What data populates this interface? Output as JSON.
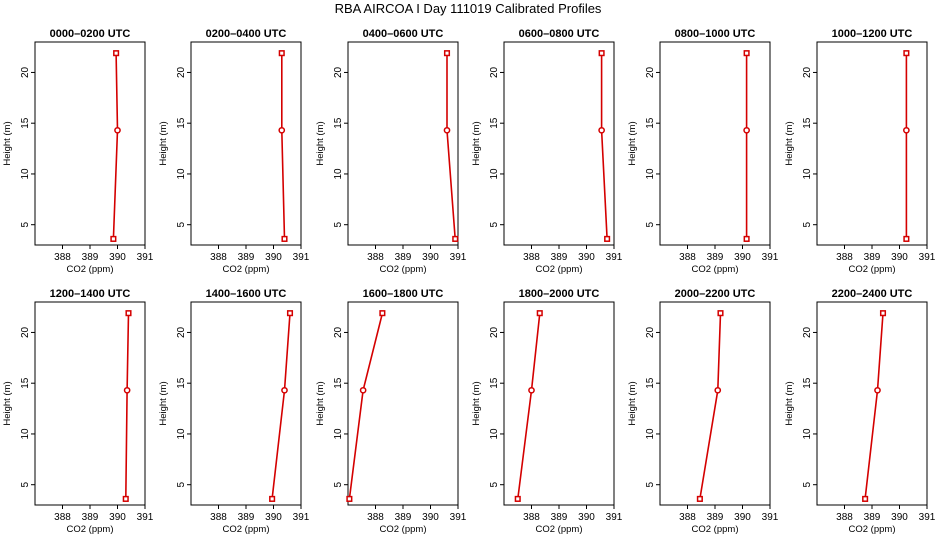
{
  "figure": {
    "title": "RBA AIRCOA I  Day 111019  Calibrated Profiles"
  },
  "chart_data": {
    "type": "line",
    "xlabel": "CO2 (ppm)",
    "ylabel": "Height (m)",
    "xlim": [
      387,
      391
    ],
    "ylim": [
      3,
      23
    ],
    "xticks": [
      388,
      389,
      390,
      391
    ],
    "yticks": [
      5,
      10,
      15,
      20
    ],
    "line_color": "#d40000",
    "grid": false,
    "panels": [
      {
        "title": "0000–0200 UTC",
        "x": [
          389.85,
          390.0,
          389.95
        ],
        "y": [
          3.6,
          14.3,
          21.9
        ]
      },
      {
        "title": "0200–0400 UTC",
        "x": [
          390.4,
          390.3,
          390.3
        ],
        "y": [
          3.6,
          14.3,
          21.9
        ]
      },
      {
        "title": "0400–0600 UTC",
        "x": [
          390.9,
          390.6,
          390.6
        ],
        "y": [
          3.6,
          14.3,
          21.9
        ]
      },
      {
        "title": "0600–0800 UTC",
        "x": [
          390.75,
          390.55,
          390.55
        ],
        "y": [
          3.6,
          14.3,
          21.9
        ]
      },
      {
        "title": "0800–1000 UTC",
        "x": [
          390.15,
          390.15,
          390.15
        ],
        "y": [
          3.6,
          14.3,
          21.9
        ]
      },
      {
        "title": "1000–1200 UTC",
        "x": [
          390.25,
          390.25,
          390.25
        ],
        "y": [
          3.6,
          14.3,
          21.9
        ]
      },
      {
        "title": "1200–1400 UTC",
        "x": [
          390.3,
          390.35,
          390.4
        ],
        "y": [
          3.6,
          14.3,
          21.9
        ]
      },
      {
        "title": "1400–1600 UTC",
        "x": [
          389.95,
          390.4,
          390.6
        ],
        "y": [
          3.6,
          14.3,
          21.9
        ]
      },
      {
        "title": "1600–1800 UTC",
        "x": [
          387.05,
          387.55,
          388.25
        ],
        "y": [
          3.6,
          14.3,
          21.9
        ]
      },
      {
        "title": "1800–2000 UTC",
        "x": [
          387.5,
          388.0,
          388.3
        ],
        "y": [
          3.6,
          14.3,
          21.9
        ]
      },
      {
        "title": "2000–2200 UTC",
        "x": [
          388.45,
          389.1,
          389.2
        ],
        "y": [
          3.6,
          14.3,
          21.9
        ]
      },
      {
        "title": "2200–2400 UTC",
        "x": [
          388.75,
          389.2,
          389.4
        ],
        "y": [
          3.6,
          14.3,
          21.9
        ]
      }
    ]
  }
}
